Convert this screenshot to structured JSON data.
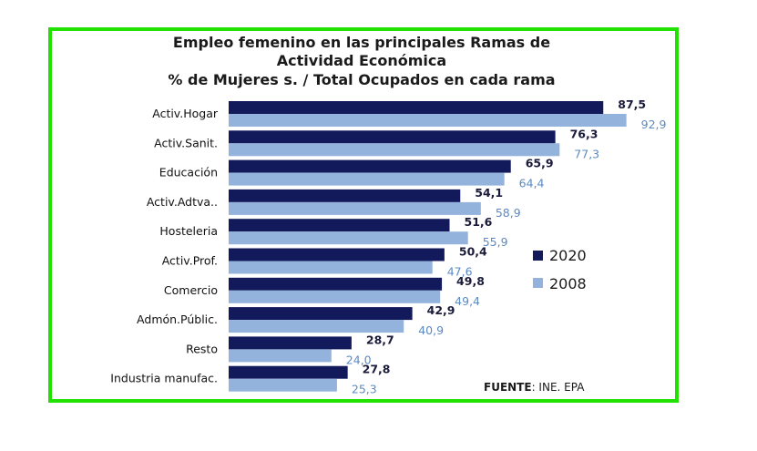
{
  "chart_data": {
    "type": "bar",
    "orientation": "horizontal",
    "title_lines": [
      "Empleo femenino en las principales Ramas de",
      "Actividad Económica",
      "% de Mujeres s. / Total Ocupados en cada rama"
    ],
    "categories": [
      "Activ.Hogar",
      "Activ.Sanit.",
      "Educación",
      "Activ.Adtva..",
      "Hosteleria",
      "Activ.Prof.",
      "Comercio",
      "Admón.Públic.",
      "Resto",
      "Industria manufac."
    ],
    "series": [
      {
        "name": "2020",
        "color": "#131a5c",
        "values": [
          87.5,
          76.3,
          65.9,
          54.1,
          51.6,
          50.4,
          49.8,
          42.9,
          28.7,
          27.8
        ],
        "labels": [
          "87,5",
          "76,3",
          "65,9",
          "54,1",
          "51,6",
          "50,4",
          "49,8",
          "42,9",
          "28,7",
          "27,8"
        ]
      },
      {
        "name": "2008",
        "color": "#93b3dd",
        "values": [
          92.9,
          77.3,
          64.4,
          58.9,
          55.9,
          47.6,
          49.4,
          40.9,
          24.0,
          25.3
        ],
        "labels": [
          "92,9",
          "77,3",
          "64,4",
          "58,9",
          "55,9",
          "47,6",
          "49,4",
          "40,9",
          "24,0",
          "25,3"
        ]
      }
    ],
    "legend_position": "right",
    "grid": false,
    "source_label": "FUENTE",
    "source_text": ": INE. EPA"
  }
}
